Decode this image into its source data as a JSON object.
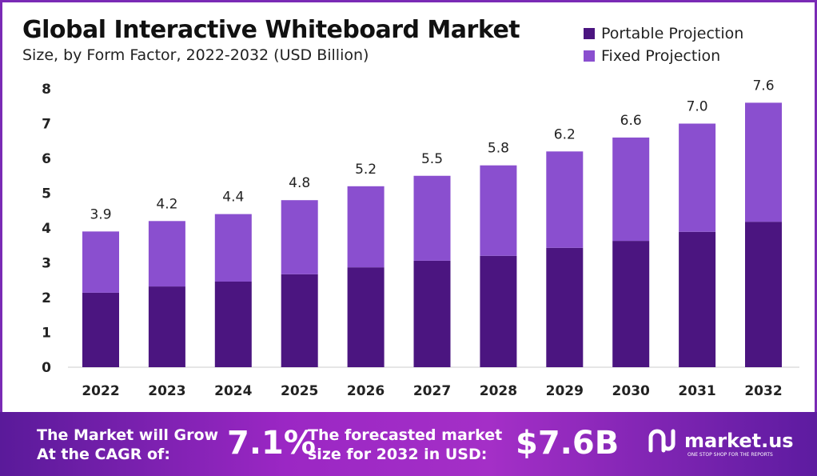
{
  "chart_data": {
    "type": "bar",
    "stacked": true,
    "title": "Global Interactive Whiteboard Market",
    "subtitle": "Size, by Form Factor, 2022-2032 (USD Billion)",
    "categories": [
      "2022",
      "2023",
      "2024",
      "2025",
      "2026",
      "2027",
      "2028",
      "2029",
      "2030",
      "2031",
      "2032"
    ],
    "series": [
      {
        "name": "Portable Projection",
        "color": "#4b1580",
        "values": [
          2.14,
          2.32,
          2.46,
          2.67,
          2.87,
          3.06,
          3.2,
          3.43,
          3.63,
          3.89,
          4.18
        ]
      },
      {
        "name": "Fixed Projection",
        "color": "#8a4fcf",
        "values": [
          1.76,
          1.88,
          1.94,
          2.13,
          2.33,
          2.44,
          2.6,
          2.77,
          2.97,
          3.11,
          3.42
        ]
      }
    ],
    "totals": [
      "3.9",
      "4.2",
      "4.4",
      "4.8",
      "5.2",
      "5.5",
      "5.8",
      "6.2",
      "6.6",
      "7.0",
      "7.6"
    ],
    "ylim": [
      0,
      8
    ],
    "yticks": [
      "0",
      "1",
      "2",
      "3",
      "4",
      "5",
      "6",
      "7",
      "8"
    ],
    "grid": false,
    "legend": "top-right"
  },
  "footer": {
    "cagr_label_1": "The Market will Grow",
    "cagr_label_2": "At the CAGR of:",
    "cagr_value": "7.1%",
    "forecast_label_1": "The forecasted market",
    "forecast_label_2": "size for 2032 in USD:",
    "forecast_value": "$7.6B",
    "brand": "market.us",
    "tagline": "ONE STOP SHOP FOR THE REPORTS"
  }
}
